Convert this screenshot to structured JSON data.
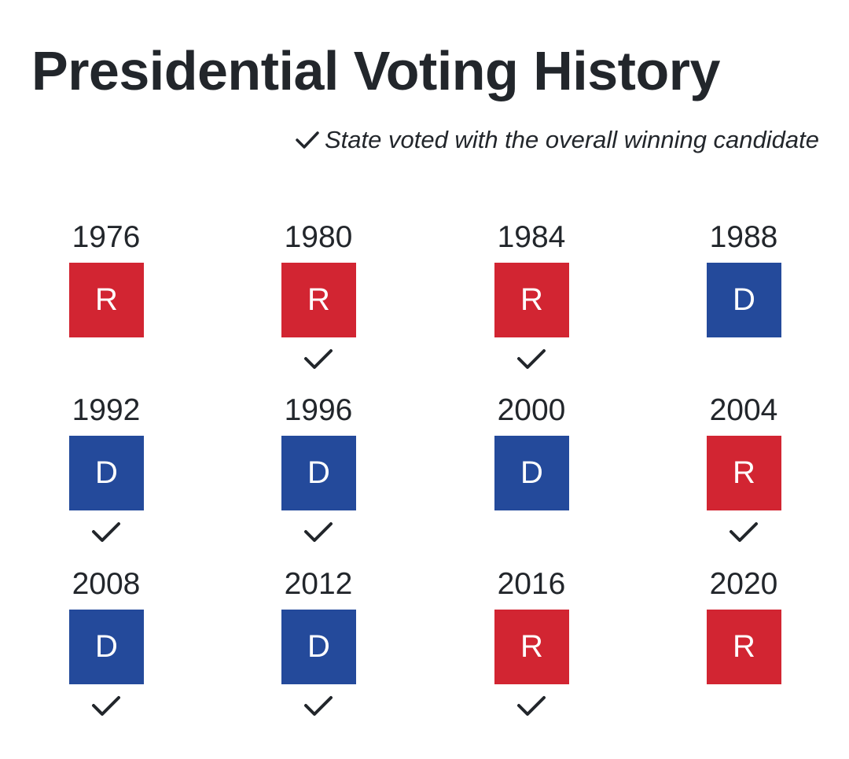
{
  "title": "Presidential Voting History",
  "legend": {
    "icon": "checkmark-icon",
    "text": "State voted with the overall winning candidate"
  },
  "colors": {
    "R": "#d22532",
    "D": "#244a9b",
    "text": "#22262b"
  },
  "chart_data": {
    "type": "table",
    "columns": 4,
    "entries": [
      {
        "year": "1976",
        "party": "R",
        "with_winner": false
      },
      {
        "year": "1980",
        "party": "R",
        "with_winner": true
      },
      {
        "year": "1984",
        "party": "R",
        "with_winner": true
      },
      {
        "year": "1988",
        "party": "D",
        "with_winner": false
      },
      {
        "year": "1992",
        "party": "D",
        "with_winner": true
      },
      {
        "year": "1996",
        "party": "D",
        "with_winner": true
      },
      {
        "year": "2000",
        "party": "D",
        "with_winner": false
      },
      {
        "year": "2004",
        "party": "R",
        "with_winner": true
      },
      {
        "year": "2008",
        "party": "D",
        "with_winner": true
      },
      {
        "year": "2012",
        "party": "D",
        "with_winner": true
      },
      {
        "year": "2016",
        "party": "R",
        "with_winner": true
      },
      {
        "year": "2020",
        "party": "R",
        "with_winner": false
      }
    ]
  }
}
